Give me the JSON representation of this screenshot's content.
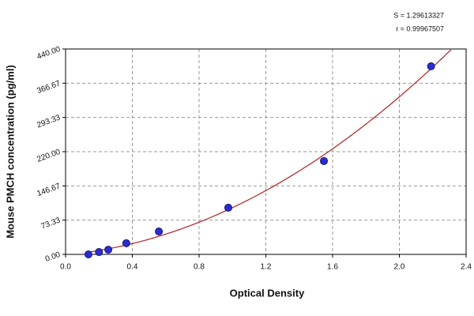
{
  "chart_data": {
    "type": "scatter",
    "x_label": "Optical Density",
    "y_label": "Mouse PMCH concentration (pg/ml)",
    "annotations": [
      "S = 1.29613327",
      "r = 0.99967507"
    ],
    "x": [
      0.137,
      0.2,
      0.256,
      0.364,
      0.559,
      0.975,
      1.548,
      2.19
    ],
    "values": [
      0,
      5,
      10,
      24,
      49,
      100,
      200,
      403
    ],
    "color": "#2b2bd6",
    "fit_color": "#b02020",
    "xlim": [
      0,
      2.4
    ],
    "ylim": [
      0,
      440
    ],
    "xticks": [
      {
        "value": 0,
        "label": "0.0"
      },
      0.4,
      0.8,
      1.2,
      1.6,
      {
        "value": 2,
        "label": "2.0"
      },
      2.4
    ],
    "yticks": [
      {
        "value": 0,
        "label": "0.00"
      },
      73.33,
      146.67,
      {
        "value": 220,
        "label": "220.00"
      },
      293.33,
      366.67,
      {
        "value": 440,
        "label": "440.00"
      }
    ],
    "grid": true
  }
}
